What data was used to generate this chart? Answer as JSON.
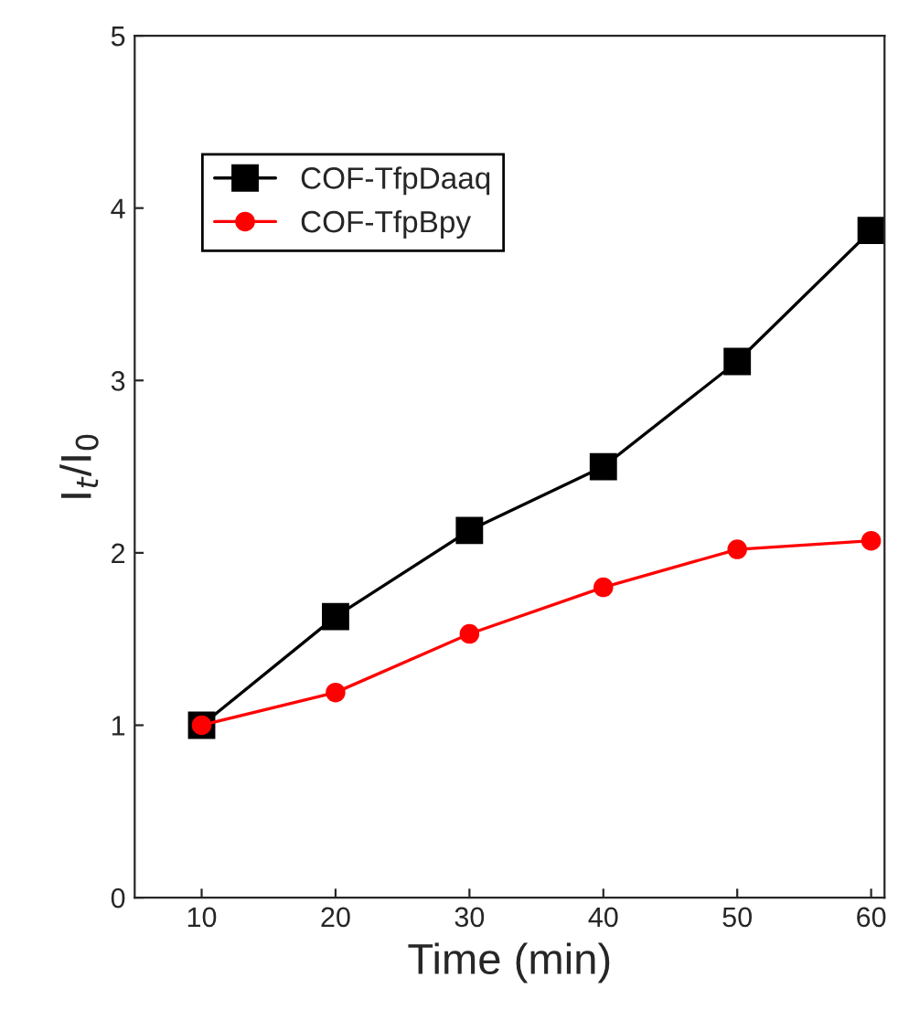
{
  "chart_data": {
    "type": "line",
    "xlabel": "Time (min)",
    "ylabel": "I$_{t}$/I$_{0}$",
    "x": [
      10,
      20,
      30,
      40,
      50,
      60
    ],
    "series": [
      {
        "name": "COF-TfpDaaq",
        "color": "#000000",
        "marker": "square",
        "values": [
          1.0,
          1.63,
          2.13,
          2.5,
          3.11,
          3.87
        ]
      },
      {
        "name": "COF-TfpBpy",
        "color": "#ff0000",
        "marker": "circle",
        "values": [
          1.0,
          1.19,
          1.53,
          1.8,
          2.02,
          2.07
        ]
      }
    ],
    "xlim": [
      5,
      61
    ],
    "xticks": [
      10,
      20,
      30,
      40,
      50,
      60
    ],
    "ylim": [
      0,
      5
    ],
    "yticks": [
      0,
      1,
      2,
      3,
      4,
      5
    ],
    "legend": "top left",
    "grid": false,
    "line_style": "solid"
  }
}
